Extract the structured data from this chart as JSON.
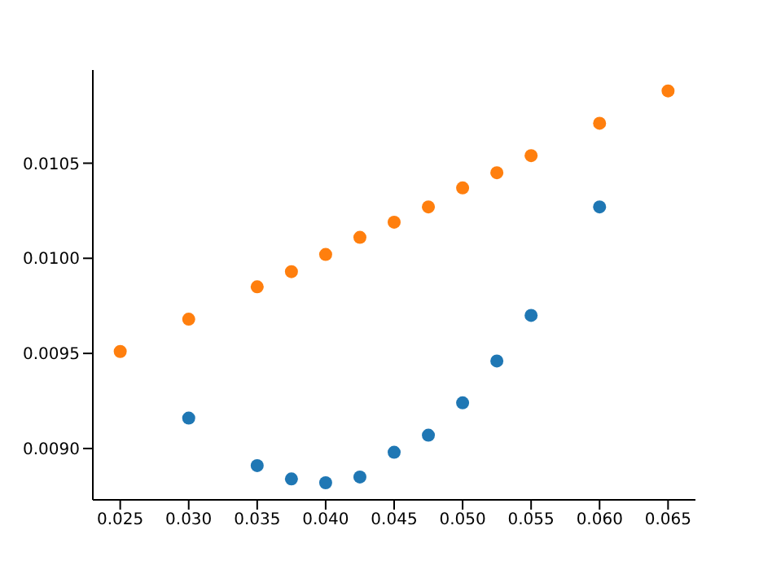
{
  "chart_data": {
    "type": "scatter",
    "marker": "circle",
    "grid": false,
    "legend": false,
    "xlim": [
      0.023,
      0.067
    ],
    "xticks": [
      0.025,
      {
        "value": 0.03,
        "label": "0.030"
      },
      0.035,
      {
        "value": 0.04,
        "label": "0.040"
      },
      0.045,
      {
        "value": 0.05,
        "label": "0.050"
      },
      0.055,
      {
        "value": 0.06,
        "label": "0.060"
      },
      0.065
    ],
    "ylim": [
      0.00873,
      0.01099
    ],
    "yticks": [
      {
        "value": 0.009,
        "label": "0.0090"
      },
      {
        "value": 0.0095,
        "label": "0.0095"
      },
      {
        "value": 0.01,
        "label": "0.0100"
      },
      {
        "value": 0.0105,
        "label": "0.0105"
      }
    ],
    "series": [
      {
        "color": "#1f77b4",
        "x": [
          0.03,
          0.035,
          0.0375,
          0.04,
          0.0425,
          0.045,
          0.0475,
          0.05,
          0.0525,
          0.055,
          0.06
        ],
        "values": [
          0.00916,
          0.00891,
          0.00884,
          0.00882,
          0.00885,
          0.00898,
          0.00907,
          0.00924,
          0.00946,
          0.0097,
          0.01027
        ]
      },
      {
        "color": "#ff7f0e",
        "x": [
          0.025,
          0.03,
          0.035,
          0.0375,
          0.04,
          0.0425,
          0.045,
          0.0475,
          0.05,
          0.0525,
          0.055,
          0.06,
          0.065
        ],
        "values": [
          0.00951,
          0.00968,
          0.00985,
          0.00993,
          0.01002,
          0.01011,
          0.01019,
          0.01027,
          0.01037,
          0.01045,
          0.01054,
          0.01071,
          0.01088
        ]
      }
    ]
  }
}
